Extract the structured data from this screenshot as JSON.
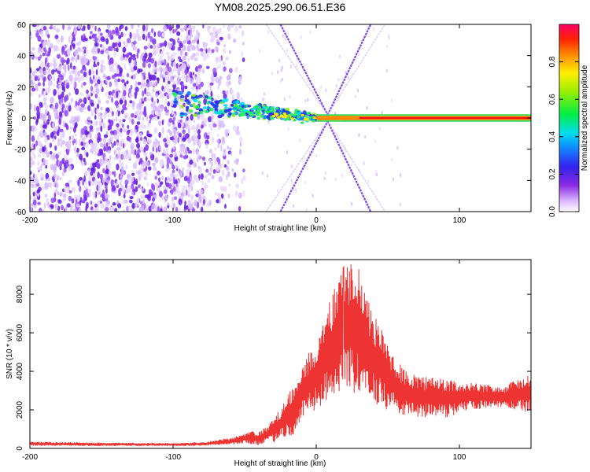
{
  "title": "YM08.2025.290.06.51.E36",
  "chart_data": [
    {
      "type": "heatmap",
      "xlabel": "Height of straight line (km)",
      "ylabel": "Frequency (Hz)",
      "xlim": [
        -200,
        150
      ],
      "ylim": [
        -60,
        60
      ],
      "x_ticks": [
        -200,
        -100,
        0,
        100
      ],
      "y_ticks": [
        -60,
        -40,
        -20,
        0,
        20,
        40,
        60
      ],
      "colorbar": {
        "label": "Normalized spectral amplitude",
        "range": [
          0,
          1
        ],
        "ticks": [
          0.0,
          0.2,
          0.4,
          0.6,
          0.8
        ]
      }
    },
    {
      "type": "line",
      "xlabel": "Height of straight line (km)",
      "ylabel": "SNR (10 * v/v)",
      "xlim": [
        -200,
        150
      ],
      "ylim": [
        0,
        9800
      ],
      "x_ticks": [
        -200,
        -100,
        0,
        100
      ],
      "y_ticks": [
        0,
        2000,
        4000,
        6000,
        8000
      ],
      "color": "#ee3333",
      "envelope": {
        "x": [
          -200,
          -150,
          -100,
          -80,
          -60,
          -50,
          -45,
          -40,
          -35,
          -30,
          -25,
          -20,
          -15,
          -10,
          -5,
          0,
          5,
          10,
          15,
          20,
          25,
          30,
          35,
          40,
          45,
          50,
          55,
          60,
          70,
          80,
          90,
          100,
          110,
          120,
          130,
          140,
          150
        ],
        "low": [
          130,
          130,
          130,
          130,
          180,
          250,
          200,
          150,
          300,
          300,
          500,
          500,
          800,
          1500,
          1800,
          2000,
          2300,
          2500,
          2800,
          3000,
          2900,
          2800,
          2600,
          2300,
          2200,
          1900,
          1800,
          1700,
          1600,
          1600,
          1600,
          1800,
          2000,
          2100,
          2100,
          2000,
          1800
        ],
        "high": [
          350,
          300,
          280,
          330,
          550,
          750,
          900,
          850,
          1100,
          1600,
          2100,
          2800,
          3400,
          4200,
          5000,
          5500,
          6500,
          7800,
          9000,
          9500,
          9700,
          9300,
          8100,
          7000,
          6300,
          5500,
          4800,
          4200,
          3800,
          3700,
          3600,
          3500,
          3400,
          3300,
          3200,
          3600,
          3900
        ]
      }
    }
  ]
}
